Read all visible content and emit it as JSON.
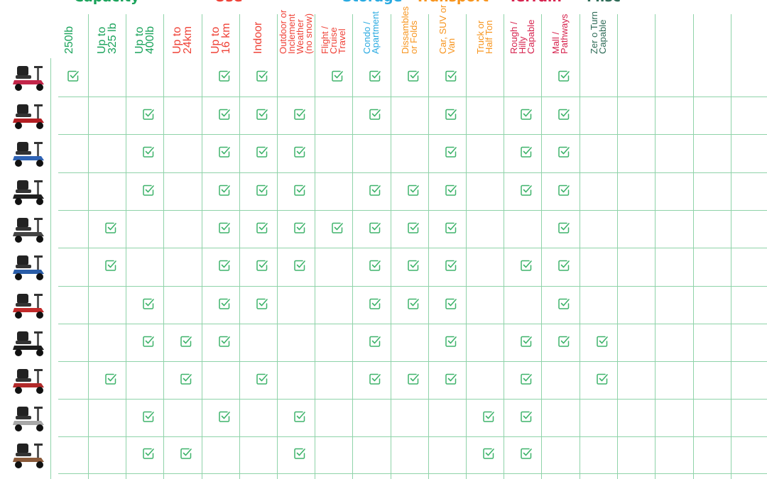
{
  "chart_data": {
    "type": "table",
    "groups": [
      {
        "name": "Capacity",
        "color": "#1aa35b"
      },
      {
        "name": "Use",
        "color": "#ef4136"
      },
      {
        "name": "Storage",
        "color": "#29aae1"
      },
      {
        "name": "Transport",
        "color": "#f7941d"
      },
      {
        "name": "Terrain",
        "color": "#d6214d"
      },
      {
        "name": "Misc",
        "color": "#2e6b57"
      }
    ],
    "columns": [
      {
        "label": "250lb",
        "group": 0
      },
      {
        "label": "Up to\n325 lb",
        "group": 0
      },
      {
        "label": "Up to\n400lb",
        "group": 0
      },
      {
        "label": "Up to\n24km",
        "group": 1
      },
      {
        "label": "Up to\n16 km",
        "group": 1
      },
      {
        "label": "Indoor",
        "group": 1
      },
      {
        "label": "Outdoor or\nInclement\nWeather\n(no snow)",
        "group": 1
      },
      {
        "label": "Flight /\nCruise\nTravel",
        "group": 1
      },
      {
        "label": "Condo /\nApartment",
        "group": 2
      },
      {
        "label": "Dissambles\nor Folds",
        "group": 3
      },
      {
        "label": "Car, SUV or\nVan",
        "group": 3
      },
      {
        "label": "Truck or\nHalf Ton",
        "group": 3
      },
      {
        "label": "Rough /\nHilly\nCapable",
        "group": 4
      },
      {
        "label": "Mall /\nPathways",
        "group": 4
      },
      {
        "label": "Zer o Turn\nCapable",
        "group": 5
      },
      {
        "label": "",
        "group": -1
      },
      {
        "label": "",
        "group": -1
      },
      {
        "label": "",
        "group": -1
      },
      {
        "label": "",
        "group": -1
      }
    ],
    "rows": [
      {
        "scooter": "red-folding-scooter",
        "checks": [
          0,
          4,
          5,
          7,
          8,
          9,
          10,
          13
        ]
      },
      {
        "scooter": "red-4-wheel-scooter",
        "checks": [
          2,
          4,
          5,
          6,
          8,
          10,
          12,
          13
        ]
      },
      {
        "scooter": "blue-3-wheel-scooter",
        "checks": [
          2,
          4,
          5,
          6,
          10,
          12,
          13
        ]
      },
      {
        "scooter": "black-4-wheel-scooter",
        "checks": [
          2,
          4,
          5,
          6,
          8,
          9,
          10,
          12,
          13
        ]
      },
      {
        "scooter": "gray-travel-scooter",
        "checks": [
          1,
          4,
          5,
          6,
          7,
          8,
          9,
          10,
          13
        ]
      },
      {
        "scooter": "blue-compact-scooter",
        "checks": [
          1,
          4,
          5,
          6,
          8,
          9,
          10,
          12,
          13
        ]
      },
      {
        "scooter": "red-compact-scooter",
        "checks": [
          2,
          4,
          5,
          8,
          9,
          10,
          13
        ]
      },
      {
        "scooter": "black-large-scooter",
        "checks": [
          2,
          3,
          4,
          8,
          10,
          12,
          13,
          14
        ]
      },
      {
        "scooter": "red-sport-scooter",
        "checks": [
          1,
          3,
          5,
          8,
          9,
          10,
          12,
          14
        ]
      },
      {
        "scooter": "silver-heavy-scooter",
        "checks": [
          2,
          4,
          6,
          11,
          12
        ]
      },
      {
        "scooter": "bronze-heavy-scooter",
        "checks": [
          2,
          3,
          6,
          11,
          12
        ]
      }
    ],
    "check_icon": "check-box-icon",
    "colors": {
      "grid": "#8fd3a9",
      "check": "#3fb36b"
    }
  }
}
